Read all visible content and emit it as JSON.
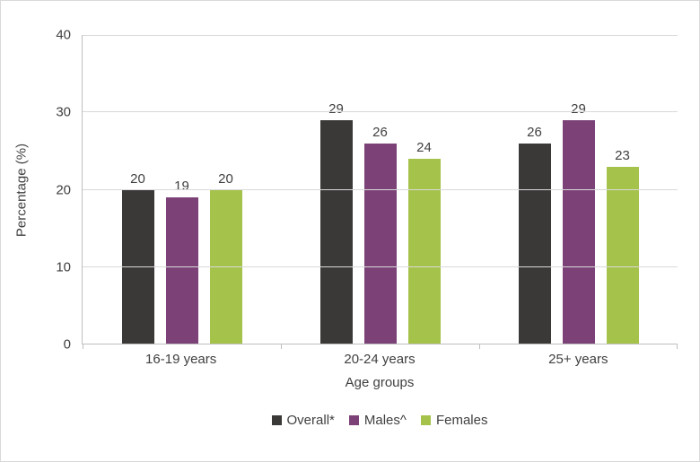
{
  "chart_data": {
    "type": "bar",
    "title": "",
    "categories": [
      "16-19 years",
      "20-24 years",
      "25+ years"
    ],
    "series": [
      {
        "name": "Overall*",
        "color": "#3b3838",
        "values": [
          20,
          29,
          26
        ]
      },
      {
        "name": "Males^",
        "color": "#7c4277",
        "values": [
          19,
          26,
          29
        ]
      },
      {
        "name": "Females",
        "color": "#a5c24b",
        "values": [
          20,
          24,
          23
        ]
      }
    ],
    "xlabel": "Age groups",
    "ylabel": "Percentage (%)",
    "ylim": [
      0,
      40
    ],
    "yticks": [
      0,
      10,
      20,
      30,
      40
    ],
    "grid": true,
    "data_labels": true,
    "legend_position": "bottom",
    "colors": {
      "gridline": "#d9d9d9",
      "axis_line": "#bfbfbf",
      "text": "#404040",
      "background": "#ffffff",
      "border": "#d9d9d9"
    }
  }
}
